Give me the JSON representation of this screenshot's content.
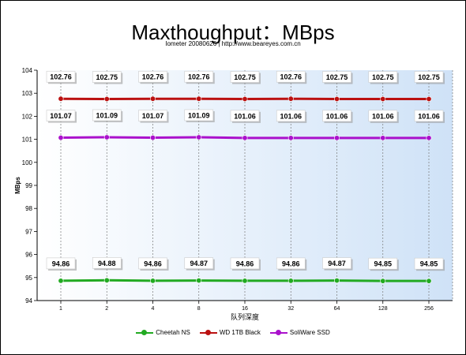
{
  "chart_data": {
    "type": "line",
    "title": "Maxthoughput：MBps",
    "subtitle": "Iometer 20080626 | http://www.beareyes.com.cn",
    "xlabel": "队列深度",
    "ylabel": "MBps",
    "categories": [
      "1",
      "2",
      "4",
      "8",
      "16",
      "32",
      "64",
      "128",
      "256"
    ],
    "ylim": [
      94,
      104
    ],
    "yticks": [
      94,
      95,
      96,
      97,
      98,
      99,
      100,
      101,
      102,
      103,
      104
    ],
    "grid": "vertical dotted",
    "legend_position": "bottom",
    "series": [
      {
        "name": "Cheetah NS",
        "color": "#22aa22",
        "values": [
          94.86,
          94.88,
          94.86,
          94.87,
          94.86,
          94.86,
          94.87,
          94.85,
          94.85
        ],
        "labels": [
          "94.86",
          "94.88",
          "94.86",
          "94.87",
          "94.86",
          "94.86",
          "94.87",
          "94.85",
          "94.85"
        ]
      },
      {
        "name": "WD 1TB Black",
        "color": "#bb1111",
        "values": [
          102.76,
          102.75,
          102.76,
          102.76,
          102.75,
          102.76,
          102.75,
          102.75,
          102.75
        ],
        "labels": [
          "102.76",
          "102.75",
          "102.76",
          "102.76",
          "102.75",
          "102.76",
          "102.75",
          "102.75",
          "102.75"
        ]
      },
      {
        "name": "SoliWare SSD",
        "color": "#aa11cc",
        "values": [
          101.07,
          101.09,
          101.07,
          101.09,
          101.06,
          101.06,
          101.06,
          101.06,
          101.06
        ],
        "labels": [
          "101.07",
          "101.09",
          "101.07",
          "101.09",
          "101.06",
          "101.06",
          "101.06",
          "101.06",
          "101.06"
        ]
      }
    ]
  }
}
